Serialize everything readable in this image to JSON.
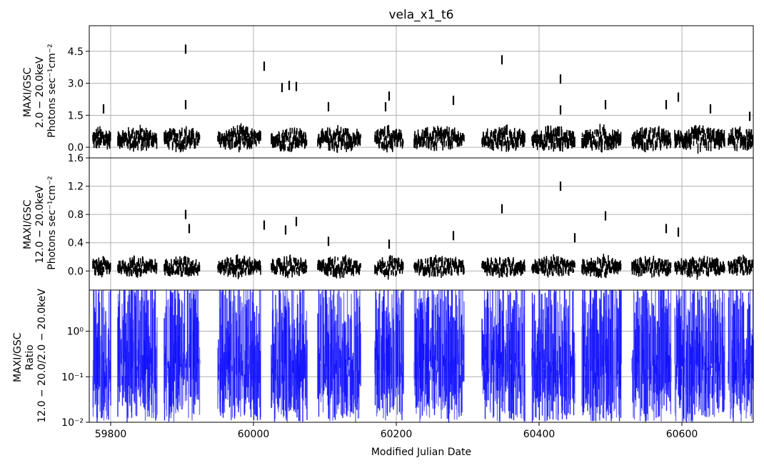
{
  "title": "vela_x1_t6",
  "xlabel": "Modified Julian Date",
  "x_ticks": [
    59800,
    60000,
    60200,
    60400,
    60600
  ],
  "xlim": [
    59770,
    60700
  ],
  "chart_data": [
    {
      "type": "scatter",
      "panel": "top",
      "ylabel_lines": [
        "MAXI/GSC",
        "2.0 − 20.0keV",
        "Photons sec⁻¹cm⁻²"
      ],
      "ylim": [
        -0.5,
        5.7
      ],
      "y_ticks": [
        "0.0",
        "1.5",
        "3.0",
        "4.5"
      ],
      "y_tick_values": [
        0.0,
        1.5,
        3.0,
        4.5
      ],
      "grid": true,
      "color": "#000000",
      "observing_windows": [
        [
          59775,
          59800
        ],
        [
          59810,
          59865
        ],
        [
          59875,
          59925
        ],
        [
          59950,
          60010
        ],
        [
          60025,
          60075
        ],
        [
          60090,
          60150
        ],
        [
          60170,
          60210
        ],
        [
          60225,
          60295
        ],
        [
          60320,
          60380
        ],
        [
          60390,
          60450
        ],
        [
          60460,
          60515
        ],
        [
          60530,
          60585
        ],
        [
          60590,
          60660
        ],
        [
          60665,
          60700
        ]
      ],
      "flares": [
        {
          "x": 59790,
          "y": 1.8
        },
        {
          "x": 59905,
          "y": 4.6
        },
        {
          "x": 59905,
          "y": 2.0
        },
        {
          "x": 60015,
          "y": 3.8
        },
        {
          "x": 60050,
          "y": 2.9
        },
        {
          "x": 60060,
          "y": 2.85
        },
        {
          "x": 60040,
          "y": 2.8
        },
        {
          "x": 60105,
          "y": 1.9
        },
        {
          "x": 60190,
          "y": 2.4
        },
        {
          "x": 60185,
          "y": 1.9
        },
        {
          "x": 60280,
          "y": 2.2
        },
        {
          "x": 60348,
          "y": 4.1
        },
        {
          "x": 60430,
          "y": 3.2
        },
        {
          "x": 60430,
          "y": 1.75
        },
        {
          "x": 60493,
          "y": 2.0
        },
        {
          "x": 60578,
          "y": 2.0
        },
        {
          "x": 60595,
          "y": 2.35
        },
        {
          "x": 60640,
          "y": 1.8
        },
        {
          "x": 60695,
          "y": 1.45
        }
      ]
    },
    {
      "type": "scatter",
      "panel": "middle",
      "ylabel_lines": [
        "MAXI/GSC",
        "12.0 − 20.0keV",
        "Photons sec⁻¹cm⁻²"
      ],
      "ylim": [
        -0.27,
        1.6
      ],
      "y_ticks": [
        "0.0",
        "0.4",
        "0.8",
        "1.2",
        "1.6"
      ],
      "y_tick_values": [
        0.0,
        0.4,
        0.8,
        1.2,
        1.6
      ],
      "grid": true,
      "color": "#000000",
      "flares": [
        {
          "x": 59905,
          "y": 0.8
        },
        {
          "x": 59910,
          "y": 0.6
        },
        {
          "x": 60015,
          "y": 0.65
        },
        {
          "x": 60045,
          "y": 0.58
        },
        {
          "x": 60060,
          "y": 0.7
        },
        {
          "x": 60105,
          "y": 0.42
        },
        {
          "x": 60190,
          "y": 0.38
        },
        {
          "x": 60280,
          "y": 0.5
        },
        {
          "x": 60348,
          "y": 0.88
        },
        {
          "x": 60430,
          "y": 1.2
        },
        {
          "x": 60450,
          "y": 0.47
        },
        {
          "x": 60493,
          "y": 0.78
        },
        {
          "x": 60578,
          "y": 0.6
        },
        {
          "x": 60595,
          "y": 0.55
        }
      ]
    },
    {
      "type": "line",
      "panel": "bottom",
      "ylabel_lines": [
        "MAXI/GSC",
        "Ratio",
        "12.0 − 20.0/2.0 − 20.0keV"
      ],
      "yscale": "log",
      "ylim": [
        0.01,
        8
      ],
      "y_ticks": [
        "10⁻²",
        "10⁻¹",
        "10⁰"
      ],
      "y_tick_values": [
        0.01,
        0.1,
        1
      ],
      "grid": true,
      "color": "#0000ff"
    }
  ]
}
